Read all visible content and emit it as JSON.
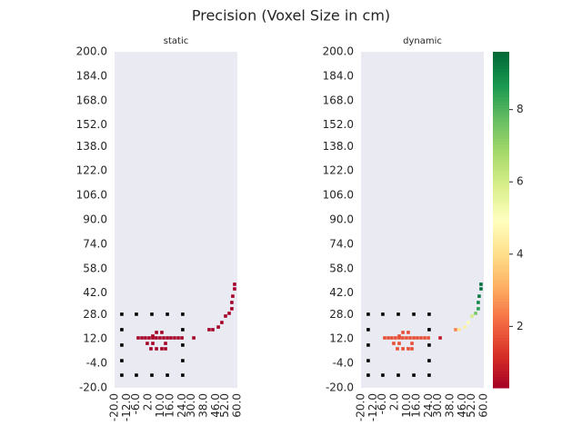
{
  "chart_data": {
    "type": "heatmap",
    "title": "Precision (Voxel Size in cm)",
    "x": [
      -4.6,
      -2.2,
      0.1,
      2.5,
      4.9,
      7.2,
      9.6,
      12.0,
      14.4,
      16.7,
      19.1,
      21.5,
      23.9,
      7.3,
      10.8,
      4.9,
      7.3,
      10.8,
      13.2,
      13.2,
      3.7,
      1.3,
      4.9,
      31.6,
      41.6,
      44.0,
      47.6,
      49.9,
      52.3,
      54.7,
      56.4,
      56.4,
      57.0,
      58.2,
      58.2
    ],
    "y": [
      12.7,
      12.7,
      12.7,
      12.7,
      12.7,
      12.7,
      12.7,
      12.7,
      12.7,
      12.7,
      12.7,
      12.7,
      12.7,
      16.3,
      16.3,
      9.1,
      5.6,
      5.6,
      5.6,
      9.1,
      5.6,
      9.1,
      13.9,
      12.7,
      18.1,
      18.1,
      19.8,
      22.8,
      27.0,
      28.8,
      31.8,
      35.9,
      40.0,
      44.8,
      47.8
    ],
    "panels": [
      {
        "subtitle": "static",
        "values": [
          0.3,
          0.3,
          0.3,
          0.3,
          0.3,
          0.3,
          0.3,
          0.3,
          0.3,
          0.3,
          0.3,
          0.3,
          0.3,
          0.3,
          0.3,
          0.3,
          0.3,
          0.3,
          0.3,
          0.3,
          0.3,
          0.3,
          0.3,
          0.3,
          0.3,
          0.3,
          0.3,
          0.3,
          0.3,
          0.3,
          0.3,
          0.3,
          0.3,
          0.3,
          0.3
        ]
      },
      {
        "subtitle": "dynamic",
        "values": [
          1.7,
          1.7,
          1.7,
          1.7,
          1.7,
          1.7,
          1.7,
          1.7,
          1.7,
          1.7,
          1.7,
          1.7,
          1.7,
          1.7,
          1.7,
          1.7,
          1.7,
          1.7,
          1.7,
          1.7,
          1.7,
          1.7,
          1.7,
          0.8,
          2.5,
          4.2,
          4.5,
          4.8,
          6.0,
          7.5,
          8.5,
          9.0,
          9.3,
          9.4,
          9.5
        ]
      }
    ],
    "overlay": {
      "color": "#000000",
      "x": [
        -15.3,
        -5.8,
        4.3,
        14.4,
        24.4,
        -15.3,
        -15.3,
        -15.3,
        24.4,
        24.4,
        24.4,
        -15.3,
        -5.8,
        4.3,
        14.4,
        24.4
      ],
      "y": [
        28.2,
        28.2,
        28.2,
        28.2,
        28.2,
        18.1,
        8.0,
        -2.2,
        18.1,
        8.0,
        -2.2,
        -11.7,
        -11.7,
        -11.7,
        -11.7,
        -11.7
      ]
    },
    "xlim": [
      -20,
      60
    ],
    "ylim": [
      -20,
      200
    ],
    "xticks": [
      {
        "value": -20,
        "label": "-20.0"
      },
      {
        "value": -12,
        "label": "-12.0"
      },
      {
        "value": -6,
        "label": "-6.0"
      },
      {
        "value": 2,
        "label": "2.0"
      },
      {
        "value": 10,
        "label": "10.0"
      },
      {
        "value": 16,
        "label": "16.0"
      },
      {
        "value": 24,
        "label": "24.0"
      },
      {
        "value": 30,
        "label": "30.0"
      },
      {
        "value": 38,
        "label": "38.0"
      },
      {
        "value": 46,
        "label": "46.0"
      },
      {
        "value": 52,
        "label": "52.0"
      },
      {
        "value": 60,
        "label": "60.0"
      }
    ],
    "yticks": [
      {
        "value": 200,
        "label": "200.0"
      },
      {
        "value": 184,
        "label": "184.0"
      },
      {
        "value": 168,
        "label": "168.0"
      },
      {
        "value": 152,
        "label": "152.0"
      },
      {
        "value": 138,
        "label": "138.0"
      },
      {
        "value": 122,
        "label": "122.0"
      },
      {
        "value": 106,
        "label": "106.0"
      },
      {
        "value": 90,
        "label": "90.0"
      },
      {
        "value": 74,
        "label": "74.0"
      },
      {
        "value": 58,
        "label": "58.0"
      },
      {
        "value": 42,
        "label": "42.0"
      },
      {
        "value": 28,
        "label": "28.0"
      },
      {
        "value": 12,
        "label": "12.0"
      },
      {
        "value": -4,
        "label": "-4.0"
      },
      {
        "value": -20,
        "label": "-20.0"
      }
    ],
    "clim": [
      0.3,
      9.6
    ],
    "cticks": [
      2,
      4,
      6,
      8
    ],
    "colormap": [
      "#a50026",
      "#d73027",
      "#f46d43",
      "#fdae61",
      "#fee08b",
      "#ffffbf",
      "#d9ef8b",
      "#a6d96a",
      "#66bd63",
      "#1a9850",
      "#006837"
    ]
  }
}
